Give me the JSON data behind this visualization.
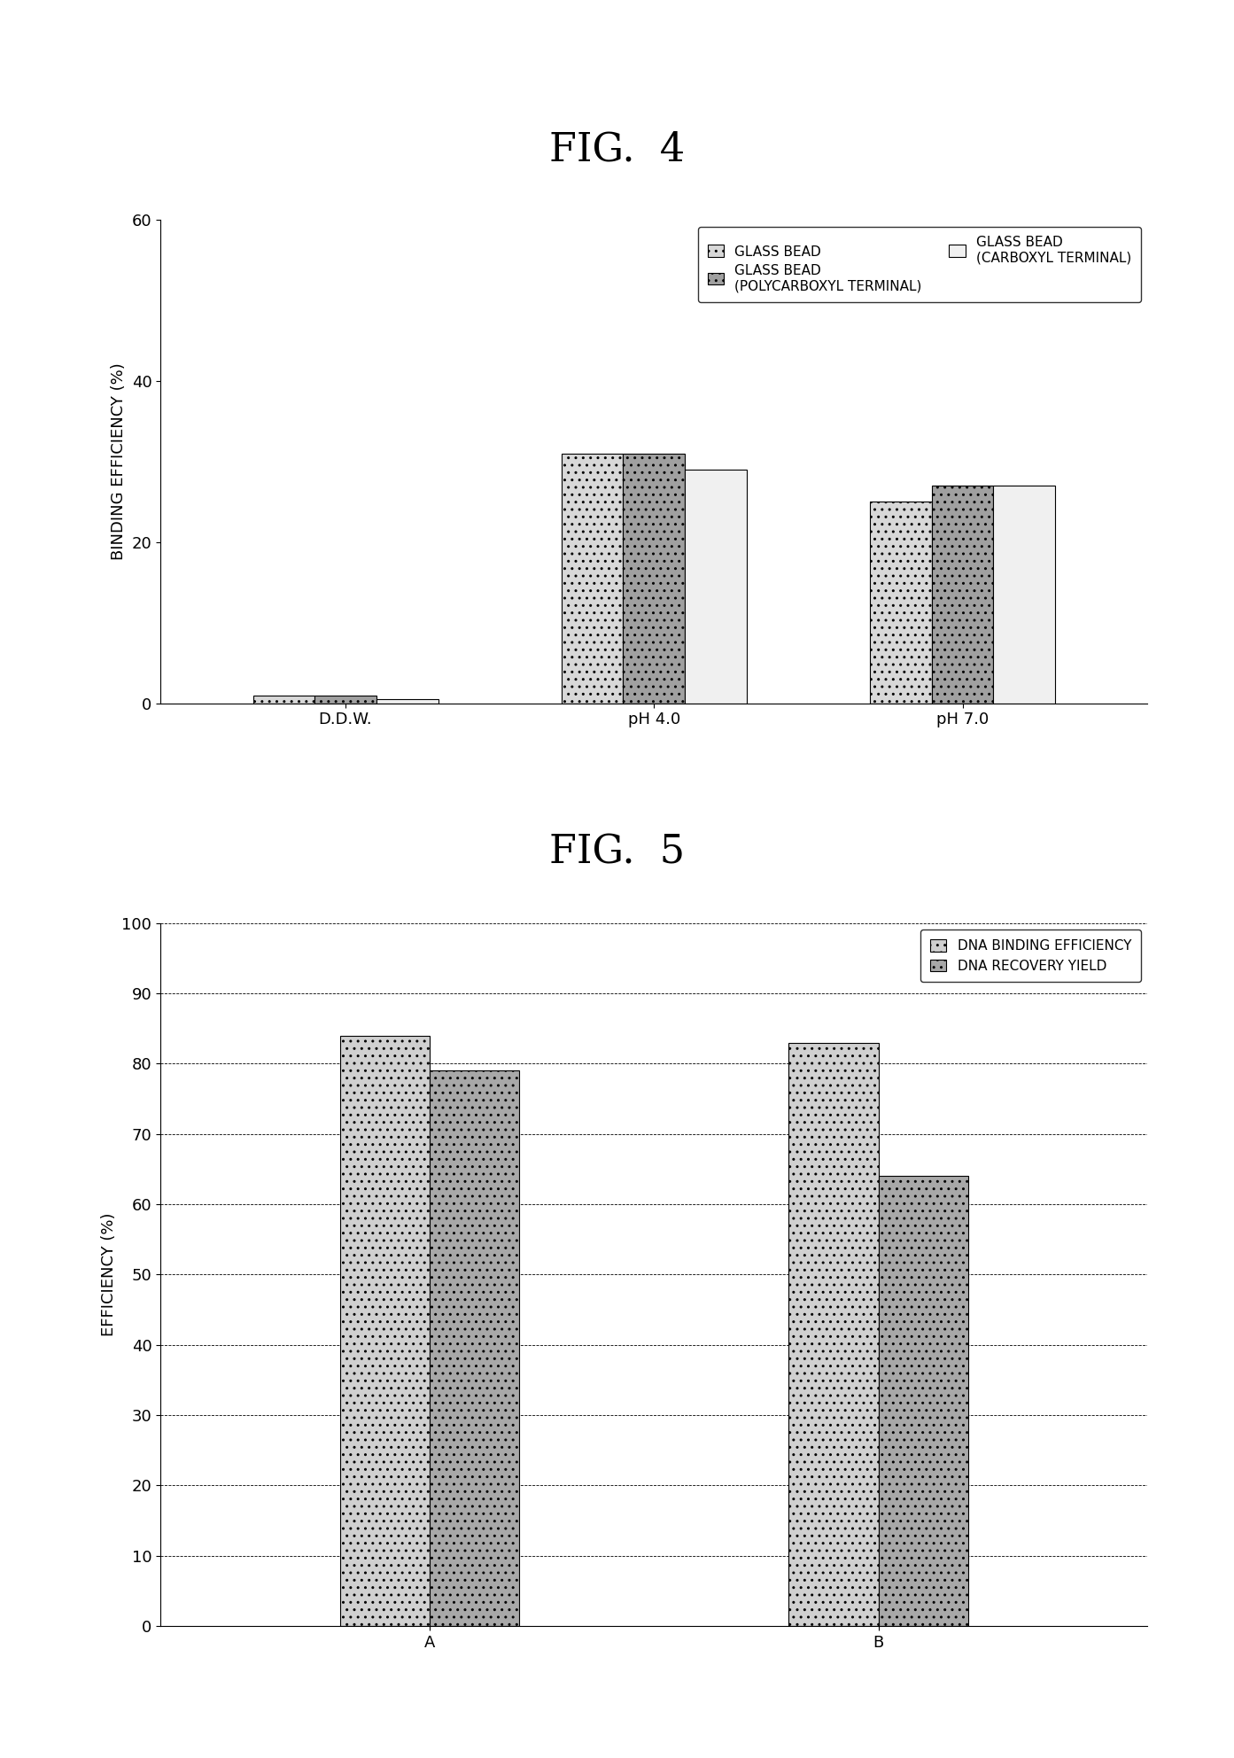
{
  "fig4": {
    "title": "FIG.  4",
    "categories": [
      "D.D.W.",
      "pH 4.0",
      "pH 7.0"
    ],
    "series": [
      {
        "label": "GLASS BEAD",
        "values": [
          1,
          31,
          25
        ],
        "color": "#d8d8d8",
        "hatch": ".."
      },
      {
        "label": "GLASS BEAD\n(POLYCARBOXYL TERMINAL)",
        "values": [
          1,
          31,
          27
        ],
        "color": "#a0a0a0",
        "hatch": ".."
      },
      {
        "label": "GLASS BEAD\n(CARBOXYL TERMINAL)",
        "values": [
          0.5,
          29,
          27
        ],
        "color": "#f0f0f0",
        "hatch": ""
      }
    ],
    "ylabel": "BINDING EFFICIENCY (%)",
    "ylim": [
      0,
      60
    ],
    "yticks": [
      0,
      20,
      40,
      60
    ]
  },
  "fig5": {
    "title": "FIG.  5",
    "categories": [
      "A",
      "B"
    ],
    "series": [
      {
        "label": "DNA BINDING EFFICIENCY",
        "values": [
          84,
          83
        ],
        "color": "#d0d0d0",
        "hatch": ".."
      },
      {
        "label": "DNA RECOVERY YIELD",
        "values": [
          79,
          64
        ],
        "color": "#a8a8a8",
        "hatch": ".."
      }
    ],
    "ylabel": "EFFICIENCY (%)",
    "ylim": [
      0,
      100
    ],
    "yticks": [
      0,
      10,
      20,
      30,
      40,
      50,
      60,
      70,
      80,
      90,
      100
    ]
  },
  "background_color": "#ffffff",
  "bar_width": 0.2,
  "title_fontsize": 32,
  "axis_label_fontsize": 13,
  "tick_fontsize": 13,
  "legend_fontsize": 11
}
